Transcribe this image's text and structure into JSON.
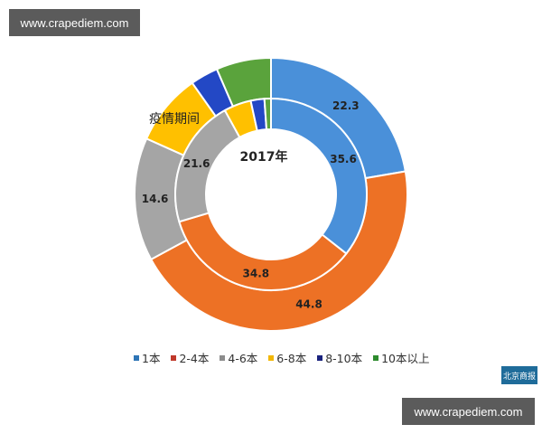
{
  "watermarks": {
    "top": "www.crapediem.com",
    "bottom": "www.crapediem.com"
  },
  "logo": {
    "text": "北京商报"
  },
  "chart_data": {
    "type": "pie",
    "subtype": "double-donut",
    "categories": [
      "1本",
      "2-4本",
      "4-6本",
      "6-8本",
      "8-10本",
      "10本以上"
    ],
    "colors": [
      "#4a90d9",
      "#ed7125",
      "#a5a5a5",
      "#ffc000",
      "#2348c5",
      "#5aa33c"
    ],
    "series": [
      {
        "name": "疫情期间",
        "ring": "outer",
        "values": [
          22.3,
          44.8,
          14.6,
          8.5,
          3.3,
          6.5
        ],
        "labels": [
          "22.3",
          "44.8",
          "14.6",
          "",
          "",
          ""
        ]
      },
      {
        "name": "2017年",
        "ring": "inner",
        "values": [
          35.6,
          34.8,
          21.6,
          4.6,
          2.3,
          1.1
        ],
        "labels": [
          "35.6",
          "34.8",
          "21.6",
          "",
          "",
          ""
        ]
      }
    ],
    "annotations": {
      "outer_ring_label": "疫情期间",
      "inner_ring_label": "2017年"
    },
    "legend_position": "bottom"
  },
  "legend": [
    {
      "label": "1本",
      "color": "#2e75b6"
    },
    {
      "label": "2-4本",
      "color": "#c0392b"
    },
    {
      "label": "4-6本",
      "color": "#8c8c8c"
    },
    {
      "label": "6-8本",
      "color": "#f2b705"
    },
    {
      "label": "8-10本",
      "color": "#1a237e"
    },
    {
      "label": "10本以上",
      "color": "#2e8b2e"
    }
  ]
}
